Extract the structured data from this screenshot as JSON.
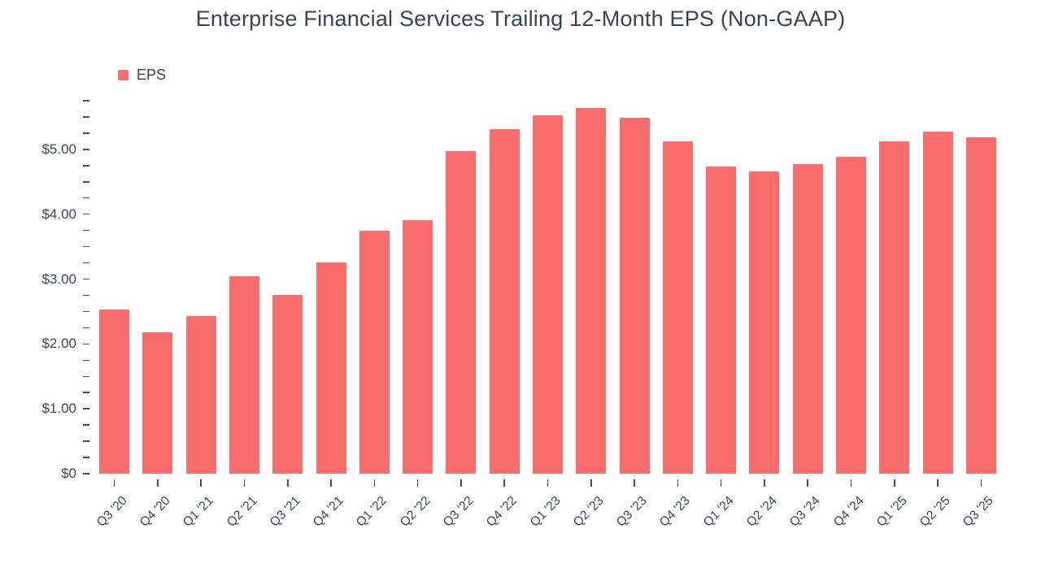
{
  "chart_data": {
    "type": "bar",
    "title": "Enterprise Financial Services Trailing 12-Month EPS (Non-GAAP)",
    "series_name": "EPS",
    "categories": [
      "Q3 '20",
      "Q4 '20",
      "Q1 '21",
      "Q2 '21",
      "Q3 '21",
      "Q4 '21",
      "Q1 '22",
      "Q2 '22",
      "Q3 '22",
      "Q4 '22",
      "Q1 '23",
      "Q2 '23",
      "Q3 '23",
      "Q4 '23",
      "Q1 '24",
      "Q2 '24",
      "Q3 '24",
      "Q4 '24",
      "Q1 '25",
      "Q2 '25",
      "Q3 '25"
    ],
    "values": [
      2.53,
      2.18,
      2.43,
      3.05,
      2.76,
      3.26,
      3.75,
      3.91,
      4.97,
      5.31,
      5.53,
      5.64,
      5.49,
      5.13,
      4.74,
      4.66,
      4.77,
      4.88,
      5.13,
      5.28,
      5.19
    ],
    "xlabel": "",
    "ylabel": "",
    "ylim": [
      0,
      5.75
    ],
    "y_tick_labels": [
      "$0",
      "$1.00",
      "$2.00",
      "$3.00",
      "$4.00",
      "$5.00"
    ],
    "y_major_step": 1.0,
    "y_minor_step": 0.25,
    "grid": false,
    "legend_position": "top-left",
    "bar_color": "#F96D6D"
  }
}
